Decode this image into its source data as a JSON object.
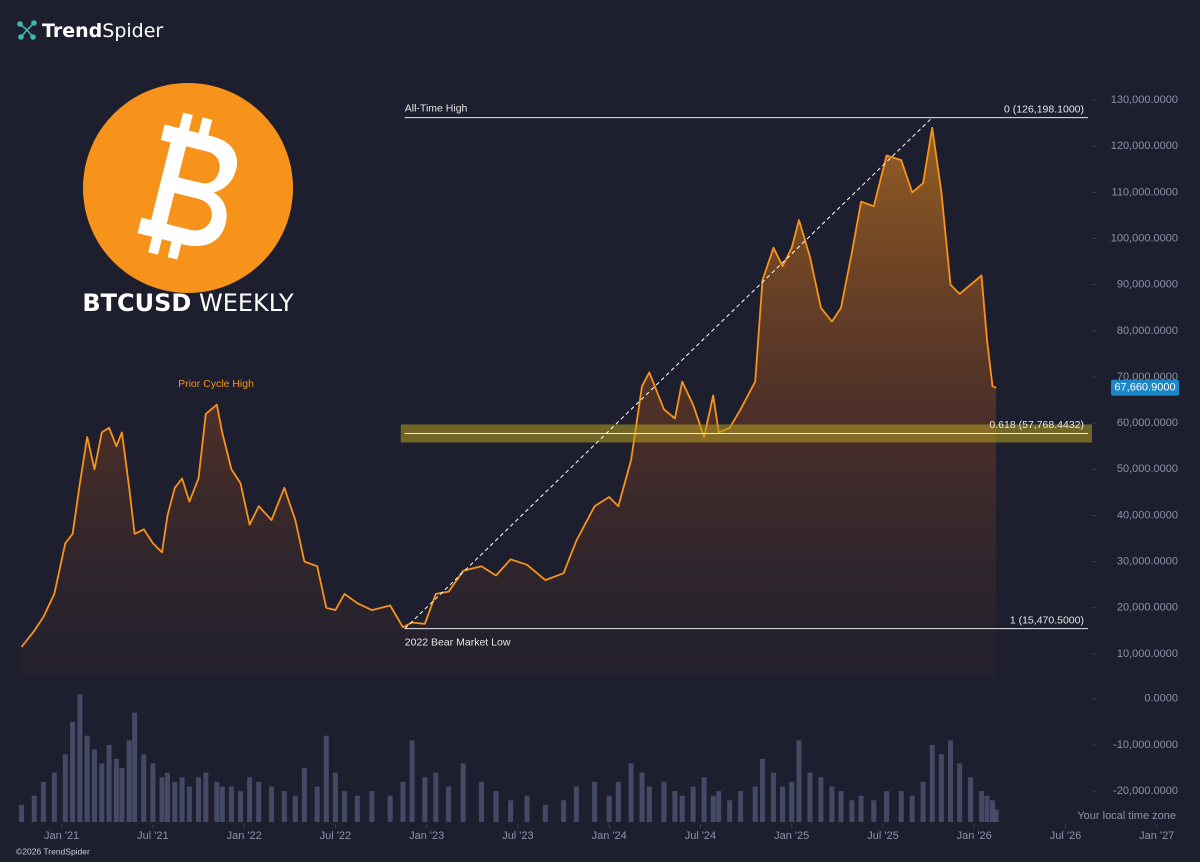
{
  "brand": {
    "bold": "Trend",
    "regular": "Spider"
  },
  "copyright": "©2026 TrendSpider",
  "timezone_note": "Your local time zone",
  "chart_data": {
    "type": "line",
    "symbol": "BTCUSD",
    "interval": "WEEKLY",
    "color": "#f7931a",
    "x": [
      2020.78,
      2020.85,
      2020.9,
      2020.96,
      2021.02,
      2021.06,
      2021.1,
      2021.14,
      2021.18,
      2021.22,
      2021.26,
      2021.3,
      2021.33,
      2021.37,
      2021.4,
      2021.45,
      2021.5,
      2021.55,
      2021.58,
      2021.62,
      2021.66,
      2021.7,
      2021.75,
      2021.79,
      2021.85,
      2021.88,
      2021.93,
      2021.98,
      2022.03,
      2022.08,
      2022.15,
      2022.22,
      2022.28,
      2022.33,
      2022.4,
      2022.45,
      2022.5,
      2022.55,
      2022.62,
      2022.7,
      2022.8,
      2022.87,
      2022.92,
      2022.99,
      2023.05,
      2023.12,
      2023.2,
      2023.3,
      2023.38,
      2023.46,
      2023.55,
      2023.65,
      2023.75,
      2023.82,
      2023.92,
      2024.0,
      2024.05,
      2024.12,
      2024.18,
      2024.22,
      2024.3,
      2024.36,
      2024.4,
      2024.46,
      2024.52,
      2024.57,
      2024.6,
      2024.66,
      2024.72,
      2024.8,
      2024.84,
      2024.9,
      2024.95,
      2025.0,
      2025.04,
      2025.1,
      2025.16,
      2025.22,
      2025.27,
      2025.33,
      2025.38,
      2025.45,
      2025.52,
      2025.6,
      2025.66,
      2025.72,
      2025.77,
      2025.82,
      2025.87,
      2025.92,
      2025.98,
      2026.04,
      2026.07,
      2026.1,
      2026.12
    ],
    "values": [
      11500,
      15000,
      18000,
      23000,
      34000,
      36000,
      47000,
      57000,
      50000,
      58000,
      59000,
      55000,
      58000,
      46000,
      36000,
      37000,
      34000,
      32000,
      40000,
      46000,
      48000,
      43000,
      48000,
      62000,
      64000,
      58000,
      50000,
      47000,
      38000,
      42000,
      39000,
      46000,
      39000,
      30000,
      29000,
      20000,
      19500,
      23000,
      21000,
      19500,
      20500,
      15800,
      16800,
      16500,
      23000,
      23500,
      28000,
      29000,
      27000,
      30500,
      29300,
      26000,
      27500,
      34500,
      42000,
      44000,
      42000,
      52000,
      68000,
      71000,
      63000,
      61000,
      69000,
      64000,
      57000,
      66000,
      58000,
      59000,
      63000,
      69000,
      91000,
      98000,
      94000,
      98000,
      104000,
      96000,
      85000,
      82000,
      85000,
      97000,
      108000,
      107000,
      118000,
      117000,
      110000,
      112000,
      124000,
      110000,
      90000,
      88000,
      90000,
      92000,
      78000,
      68000,
      67660.9
    ],
    "xlim": [
      2020.75,
      2027.1
    ],
    "xticks": [
      {
        "value": 2021,
        "label": "Jan '21"
      },
      {
        "value": 2021.5,
        "label": "Jul '21"
      },
      {
        "value": 2022,
        "label": "Jan '22"
      },
      {
        "value": 2022.5,
        "label": "Jul '22"
      },
      {
        "value": 2023,
        "label": "Jan '23"
      },
      {
        "value": 2023.5,
        "label": "Jul '23"
      },
      {
        "value": 2024,
        "label": "Jan '24"
      },
      {
        "value": 2024.5,
        "label": "Jul '24"
      },
      {
        "value": 2025,
        "label": "Jan '25"
      },
      {
        "value": 2025.5,
        "label": "Jul '25"
      },
      {
        "value": 2026,
        "label": "Jan '26"
      },
      {
        "value": 2026.5,
        "label": "Jul '26"
      },
      {
        "value": 2027,
        "label": "Jan '27"
      }
    ],
    "ylim": [
      5000,
      135000
    ],
    "yticks": [
      {
        "value": 10000,
        "label": "10,000.0000"
      },
      {
        "value": 20000,
        "label": "20,000.0000"
      },
      {
        "value": 30000,
        "label": "30,000.0000"
      },
      {
        "value": 40000,
        "label": "40,000.0000"
      },
      {
        "value": 50000,
        "label": "50,000.0000"
      },
      {
        "value": 60000,
        "label": "60,000.0000"
      },
      {
        "value": 70000,
        "label": "70,000.0000"
      },
      {
        "value": 80000,
        "label": "80,000.0000"
      },
      {
        "value": 90000,
        "label": "90,000.0000"
      },
      {
        "value": 100000,
        "label": "100,000.0000"
      },
      {
        "value": 110000,
        "label": "110,000.0000"
      },
      {
        "value": 120000,
        "label": "120,000.0000"
      },
      {
        "value": 130000,
        "label": "130,000.0000"
      }
    ],
    "last_price": {
      "value": 67660.9,
      "label": "67,660.9000"
    },
    "levels": [
      {
        "value": 126198.1,
        "label": "0 (126,198.1000)",
        "note": "All-Time High"
      },
      {
        "value": 57768.4432,
        "label": "0.618 (57,768.4432)"
      },
      {
        "value": 15470.5,
        "label": "1 (15,470.5000)",
        "note": "2022 Bear Market Low"
      }
    ],
    "trend_line_x": [
      2022.88,
      2025.77
    ],
    "annotation": "Prior Cycle High",
    "volume": {
      "color": "#4b5170",
      "values": [
        -23000,
        -21000,
        -18000,
        -16000,
        -12000,
        -5000,
        1000,
        -8000,
        -11000,
        -14000,
        -10000,
        -13000,
        -15000,
        -9000,
        -3000,
        -12000,
        -14000,
        -17000,
        -16000,
        -18000,
        -17000,
        -19000,
        -17000,
        -16000,
        -18000,
        -19000,
        -19000,
        -20000,
        -17000,
        -18000,
        -19000,
        -20000,
        -21000,
        -15000,
        -19000,
        -8000,
        -16000,
        -20000,
        -21000,
        -20000,
        -21000,
        -18000,
        -9000,
        -17000,
        -16000,
        -19000,
        -14000,
        -18000,
        -20000,
        -22000,
        -21000,
        -23000,
        -22000,
        -19000,
        -18000,
        -21000,
        -18000,
        -14000,
        -16000,
        -19000,
        -18000,
        -20000,
        -21000,
        -19000,
        -17000,
        -21000,
        -20000,
        -22000,
        -20000,
        -19000,
        -13000,
        -16000,
        -19000,
        -18000,
        -9000,
        -16000,
        -17000,
        -19000,
        -20000,
        -22000,
        -21000,
        -22000,
        -20000,
        -20000,
        -21000,
        -18000,
        -10000,
        -12000,
        -9000,
        -14000,
        -17000,
        -20000,
        -21000,
        -22000,
        -24000
      ],
      "ylim": [
        -26700,
        3000
      ],
      "yticks": [
        {
          "value": 0,
          "label": "0.0000"
        },
        {
          "value": -10000,
          "label": "-10,000.0000"
        },
        {
          "value": -20000,
          "label": "-20,000.0000"
        }
      ]
    }
  }
}
